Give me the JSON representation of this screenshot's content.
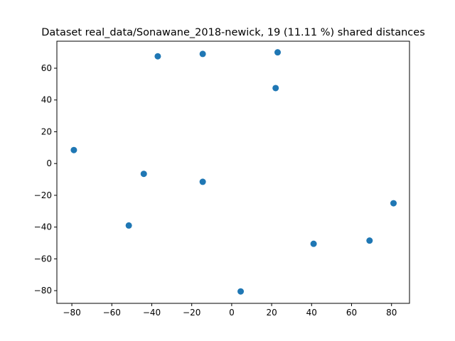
{
  "chart_data": {
    "type": "scatter",
    "title": "Dataset real_data/Sonawane_2018-newick, 19 (11.11 %) shared distances",
    "xlabel": "",
    "ylabel": "",
    "xlim": [
      -87.5,
      89
    ],
    "ylim": [
      -88,
      77
    ],
    "xticks": [
      -80,
      -60,
      -40,
      -20,
      0,
      20,
      40,
      60,
      80
    ],
    "yticks": [
      -80,
      -60,
      -40,
      -20,
      0,
      20,
      40,
      60
    ],
    "xtick_labels": [
      "−80",
      "−60",
      "−40",
      "−20",
      "0",
      "20",
      "40",
      "60",
      "80"
    ],
    "ytick_labels": [
      "−80",
      "−60",
      "−40",
      "−20",
      "0",
      "20",
      "40",
      "60"
    ],
    "grid": false,
    "marker_color": "#1f77b4",
    "points": [
      {
        "x": -79,
        "y": 8.5
      },
      {
        "x": -37,
        "y": 67.5
      },
      {
        "x": -14.5,
        "y": 69
      },
      {
        "x": 23,
        "y": 70
      },
      {
        "x": 22,
        "y": 47.5
      },
      {
        "x": -44,
        "y": -6.5
      },
      {
        "x": -14.5,
        "y": -11.5
      },
      {
        "x": -51.5,
        "y": -39
      },
      {
        "x": 4.5,
        "y": -80.5
      },
      {
        "x": 41,
        "y": -50.5
      },
      {
        "x": 69,
        "y": -48.5
      },
      {
        "x": 81,
        "y": -25
      }
    ]
  }
}
